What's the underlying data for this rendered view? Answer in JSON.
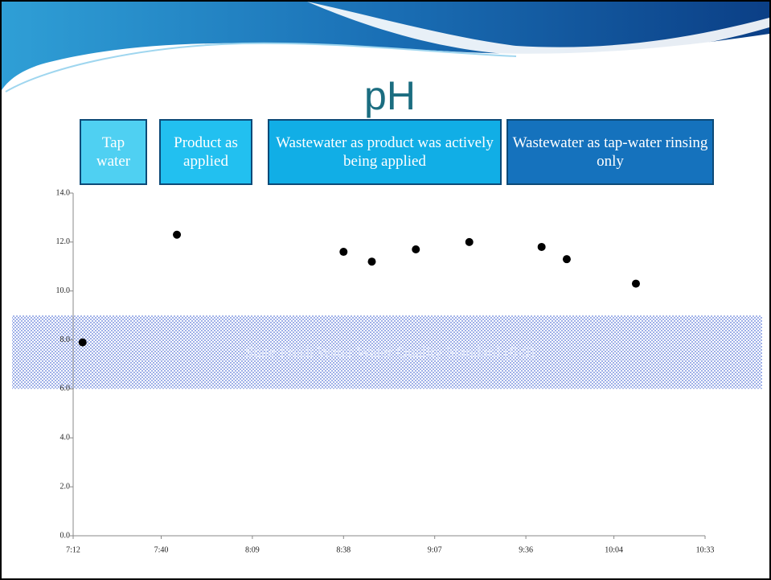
{
  "chart_data": {
    "type": "scatter",
    "title": "pH",
    "annotations": [
      {
        "text": "Tap water",
        "color": "#4fd0f2"
      },
      {
        "text": "Product as applied",
        "color": "#22c0f0"
      },
      {
        "text": "Wastewater as product was actively being applied",
        "color": "#11aee6"
      },
      {
        "text": "Wastewater as tap-water rinsing only",
        "color": "#1572bd"
      }
    ],
    "standard_band": {
      "label": "State Fresh Water Water Quality Standard (6-9)",
      "range": [
        6,
        9
      ],
      "color": "#8fa6e6"
    },
    "x": [
      435,
      465,
      518,
      527,
      541,
      558,
      581,
      589,
      611
    ],
    "values": [
      7.9,
      12.3,
      11.6,
      11.2,
      11.7,
      12.0,
      11.8,
      11.3,
      10.3
    ],
    "color": "#000000",
    "xlim": [
      432,
      633
    ],
    "xticks": [
      {
        "value": 432,
        "label": "7:12"
      },
      {
        "value": 460,
        "label": "7:40"
      },
      {
        "value": 489,
        "label": "8:09"
      },
      {
        "value": 518,
        "label": "8:38"
      },
      {
        "value": 547,
        "label": "9:07"
      },
      {
        "value": 576,
        "label": "9:36"
      },
      {
        "value": 604,
        "label": "10:04"
      },
      {
        "value": 633,
        "label": "10:33"
      }
    ],
    "ylim": [
      0,
      14
    ],
    "yticks": [
      {
        "value": 0,
        "label": "0.0"
      },
      {
        "value": 2,
        "label": "2.0"
      },
      {
        "value": 4,
        "label": "4.0"
      },
      {
        "value": 6,
        "label": "6.0"
      },
      {
        "value": 8,
        "label": "8.0"
      },
      {
        "value": 10,
        "label": "10.0"
      },
      {
        "value": 12,
        "label": "12.0"
      },
      {
        "value": 14,
        "label": "14.0"
      }
    ]
  }
}
